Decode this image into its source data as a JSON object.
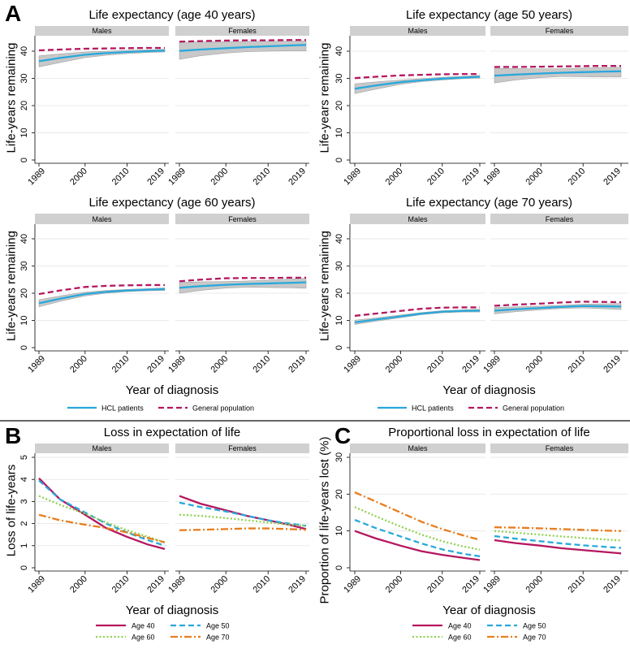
{
  "figure": {
    "panel_letters": [
      "A",
      "B",
      "C"
    ],
    "legend_A": [
      {
        "label": "HCL patients",
        "color": "#29a8dc",
        "style": "solid"
      },
      {
        "label": "General population",
        "color": "#b5175f",
        "style": "dashed"
      }
    ],
    "legend_BC": [
      {
        "label": "Age 40",
        "color": "#b5175f",
        "style": "solid"
      },
      {
        "label": "Age 50",
        "color": "#29a8dc",
        "style": "dashed"
      },
      {
        "label": "Age 60",
        "color": "#8fd14f",
        "style": "dotted"
      },
      {
        "label": "Age 70",
        "color": "#e87d1e",
        "style": "dashdot"
      }
    ],
    "ci_color": "#c8c8c8",
    "strip_color": "#d0d0d0"
  },
  "chart_data": [
    {
      "type": "line",
      "panel": "A",
      "title": "Life expectancy (age 40 years)",
      "xlabel": "",
      "ylabel": "Life-years remaining",
      "ylim": [
        0,
        45
      ],
      "yticks": [
        0,
        10,
        20,
        30,
        40
      ],
      "xticks": [
        1989,
        2000,
        2010,
        2019
      ],
      "grid": true,
      "legend": "none",
      "facets": [
        {
          "label": "Males",
          "x": [
            1989,
            1994,
            2000,
            2005,
            2010,
            2015,
            2019
          ],
          "series": [
            {
              "name": "HCL patients",
              "values": [
                36.3,
                37.5,
                38.7,
                39.3,
                39.7,
                40.0,
                40.2
              ],
              "ci_lower": [
                34.2,
                35.8,
                37.6,
                38.5,
                39.1,
                39.5,
                39.7
              ],
              "ci_upper": [
                38.3,
                39.0,
                39.7,
                40.0,
                40.3,
                40.5,
                40.7
              ]
            },
            {
              "name": "General population",
              "values": [
                40.3,
                40.6,
                40.9,
                41.0,
                41.1,
                41.2,
                41.2
              ]
            }
          ]
        },
        {
          "label": "Females",
          "x": [
            1989,
            1994,
            2000,
            2005,
            2010,
            2015,
            2019
          ],
          "series": [
            {
              "name": "HCL patients",
              "values": [
                40.1,
                40.6,
                41.1,
                41.5,
                41.8,
                42.1,
                42.3
              ],
              "ci_lower": [
                37.0,
                38.3,
                39.3,
                39.8,
                40.0,
                40.1,
                40.1
              ],
              "ci_upper": [
                43.3,
                43.4,
                43.5,
                43.6,
                43.7,
                43.7,
                43.8
              ]
            },
            {
              "name": "General population",
              "values": [
                43.5,
                43.7,
                43.9,
                44.0,
                44.0,
                44.1,
                44.1
              ]
            }
          ]
        }
      ]
    },
    {
      "type": "line",
      "panel": "A",
      "title": "Life expectancy (age 50 years)",
      "xlabel": "",
      "ylabel": "Life-years remaining",
      "ylim": [
        0,
        45
      ],
      "yticks": [
        0,
        10,
        20,
        30,
        40
      ],
      "xticks": [
        1989,
        2000,
        2010,
        2019
      ],
      "grid": true,
      "legend": "none",
      "facets": [
        {
          "label": "Males",
          "x": [
            1989,
            1994,
            2000,
            2005,
            2010,
            2015,
            2019
          ],
          "series": [
            {
              "name": "HCL patients",
              "values": [
                26.2,
                27.4,
                28.6,
                29.3,
                29.9,
                30.3,
                30.6
              ],
              "ci_lower": [
                24.4,
                26.0,
                27.8,
                28.8,
                29.4,
                29.9,
                30.1
              ],
              "ci_upper": [
                28.0,
                28.7,
                29.4,
                29.9,
                30.4,
                30.8,
                31.1
              ]
            },
            {
              "name": "General population",
              "values": [
                30.1,
                30.6,
                31.1,
                31.3,
                31.5,
                31.6,
                31.6
              ]
            }
          ]
        },
        {
          "label": "Females",
          "x": [
            1989,
            1994,
            2000,
            2005,
            2010,
            2015,
            2019
          ],
          "series": [
            {
              "name": "HCL patients",
              "values": [
                31.0,
                31.4,
                31.8,
                32.1,
                32.3,
                32.5,
                32.6
              ],
              "ci_lower": [
                28.3,
                29.4,
                30.3,
                30.7,
                30.6,
                30.5,
                30.5
              ],
              "ci_upper": [
                33.7,
                33.6,
                33.5,
                33.6,
                33.8,
                34.0,
                34.1
              ]
            },
            {
              "name": "General population",
              "values": [
                34.2,
                34.2,
                34.3,
                34.4,
                34.5,
                34.6,
                34.6
              ]
            }
          ]
        }
      ]
    },
    {
      "type": "line",
      "panel": "A",
      "title": "Life expectancy (age 60 years)",
      "xlabel": "Year of diagnosis",
      "ylabel": "Life-years remaining",
      "ylim": [
        0,
        45
      ],
      "yticks": [
        0,
        10,
        20,
        30,
        40
      ],
      "xticks": [
        1989,
        2000,
        2010,
        2019
      ],
      "grid": true,
      "legend": "bottom",
      "facets": [
        {
          "label": "Males",
          "x": [
            1989,
            1994,
            2000,
            2005,
            2010,
            2015,
            2019
          ],
          "series": [
            {
              "name": "HCL patients",
              "values": [
                16.3,
                18.0,
                19.7,
                20.5,
                21.0,
                21.3,
                21.5
              ],
              "ci_lower": [
                15.0,
                17.0,
                19.0,
                20.0,
                20.6,
                20.9,
                21.0
              ],
              "ci_upper": [
                17.6,
                19.0,
                20.4,
                21.0,
                21.4,
                21.7,
                22.0
              ]
            },
            {
              "name": "General population",
              "values": [
                19.7,
                21.0,
                22.3,
                22.7,
                22.9,
                23.0,
                23.0
              ]
            }
          ]
        },
        {
          "label": "Females",
          "x": [
            1989,
            1994,
            2000,
            2005,
            2010,
            2015,
            2019
          ],
          "series": [
            {
              "name": "HCL patients",
              "values": [
                22.0,
                22.6,
                23.1,
                23.4,
                23.6,
                23.8,
                24.0
              ],
              "ci_lower": [
                20.0,
                21.0,
                21.9,
                22.2,
                22.1,
                22.0,
                21.8
              ],
              "ci_upper": [
                24.0,
                24.2,
                24.3,
                24.5,
                24.8,
                25.2,
                25.5
              ]
            },
            {
              "name": "General population",
              "values": [
                24.4,
                25.0,
                25.5,
                25.6,
                25.6,
                25.7,
                25.7
              ]
            }
          ]
        }
      ]
    },
    {
      "type": "line",
      "panel": "A",
      "title": "Life expectancy (age 70 years)",
      "xlabel": "Year of diagnosis",
      "ylabel": "Life-years remaining",
      "ylim": [
        0,
        45
      ],
      "yticks": [
        0,
        10,
        20,
        30,
        40
      ],
      "xticks": [
        1989,
        2000,
        2010,
        2019
      ],
      "grid": true,
      "legend": "bottom",
      "facets": [
        {
          "label": "Males",
          "x": [
            1989,
            1994,
            2000,
            2005,
            2010,
            2015,
            2019
          ],
          "series": [
            {
              "name": "HCL patients",
              "values": [
                9.3,
                10.3,
                11.5,
                12.5,
                13.2,
                13.5,
                13.6
              ],
              "ci_lower": [
                8.5,
                9.7,
                11.0,
                12.1,
                12.8,
                13.1,
                13.1
              ],
              "ci_upper": [
                10.1,
                10.9,
                12.0,
                12.9,
                13.6,
                13.9,
                14.1
              ]
            },
            {
              "name": "General population",
              "values": [
                11.7,
                12.5,
                13.5,
                14.3,
                14.7,
                14.8,
                14.8
              ]
            }
          ]
        },
        {
          "label": "Females",
          "x": [
            1989,
            1994,
            2000,
            2005,
            2010,
            2015,
            2019
          ],
          "series": [
            {
              "name": "HCL patients",
              "values": [
                13.6,
                14.1,
                14.6,
                15.0,
                15.3,
                15.2,
                15.1
              ],
              "ci_lower": [
                12.4,
                13.2,
                13.9,
                14.4,
                14.6,
                14.3,
                14.0
              ],
              "ci_upper": [
                14.8,
                15.0,
                15.3,
                15.6,
                16.0,
                16.1,
                16.2
              ]
            },
            {
              "name": "General population",
              "values": [
                15.4,
                15.8,
                16.2,
                16.6,
                16.9,
                16.8,
                16.7
              ]
            }
          ]
        }
      ]
    },
    {
      "type": "line",
      "panel": "B",
      "title": "Loss in expectation of life",
      "xlabel": "Year of diagnosis",
      "ylabel": "Loss of life-years",
      "ylim": [
        0,
        5
      ],
      "yticks": [
        0,
        1,
        2,
        3,
        4,
        5
      ],
      "xticks": [
        1989,
        2000,
        2010,
        2019
      ],
      "grid": true,
      "legend": "bottom",
      "facets": [
        {
          "label": "Males",
          "x": [
            1989,
            1994,
            2000,
            2005,
            2010,
            2015,
            2019
          ],
          "series": [
            {
              "name": "Age 40",
              "values": [
                4.05,
                3.1,
                2.4,
                1.8,
                1.4,
                1.05,
                0.85
              ]
            },
            {
              "name": "Age 50",
              "values": [
                3.95,
                3.1,
                2.5,
                2.0,
                1.6,
                1.25,
                1.0
              ]
            },
            {
              "name": "Age 60",
              "values": [
                3.25,
                2.85,
                2.45,
                2.05,
                1.7,
                1.4,
                1.15
              ]
            },
            {
              "name": "Age 70",
              "values": [
                2.4,
                2.15,
                1.95,
                1.8,
                1.6,
                1.35,
                1.15
              ]
            }
          ]
        },
        {
          "label": "Females",
          "x": [
            1989,
            1994,
            2000,
            2005,
            2010,
            2015,
            2019
          ],
          "series": [
            {
              "name": "Age 40",
              "values": [
                3.25,
                2.9,
                2.6,
                2.35,
                2.15,
                1.95,
                1.75
              ]
            },
            {
              "name": "Age 50",
              "values": [
                2.95,
                2.75,
                2.55,
                2.35,
                2.15,
                2.0,
                1.9
              ]
            },
            {
              "name": "Age 60",
              "values": [
                2.4,
                2.35,
                2.25,
                2.15,
                2.05,
                1.95,
                1.9
              ]
            },
            {
              "name": "Age 70",
              "values": [
                1.7,
                1.72,
                1.75,
                1.78,
                1.78,
                1.75,
                1.72
              ]
            }
          ]
        }
      ]
    },
    {
      "type": "line",
      "panel": "C",
      "title": "Proportional loss in expectation of life",
      "xlabel": "Year of diagnosis",
      "ylabel": "Proportion of life-years lost (%)",
      "ylim": [
        0,
        30
      ],
      "yticks": [
        0,
        10,
        20,
        30
      ],
      "xticks": [
        1989,
        2000,
        2010,
        2019
      ],
      "grid": true,
      "legend": "bottom",
      "facets": [
        {
          "label": "Males",
          "x": [
            1989,
            1994,
            2000,
            2005,
            2010,
            2015,
            2019
          ],
          "series": [
            {
              "name": "Age 40",
              "values": [
                10.0,
                8.0,
                6.0,
                4.5,
                3.5,
                2.7,
                2.1
              ]
            },
            {
              "name": "Age 50",
              "values": [
                13.0,
                10.8,
                8.5,
                6.6,
                5.0,
                3.8,
                3.1
              ]
            },
            {
              "name": "Age 60",
              "values": [
                16.5,
                14.0,
                11.2,
                9.0,
                7.2,
                5.8,
                4.9
              ]
            },
            {
              "name": "Age 70",
              "values": [
                20.5,
                18.0,
                15.0,
                12.5,
                10.5,
                8.8,
                7.6
              ]
            }
          ]
        },
        {
          "label": "Females",
          "x": [
            1989,
            1994,
            2000,
            2005,
            2010,
            2015,
            2019
          ],
          "series": [
            {
              "name": "Age 40",
              "values": [
                7.5,
                6.7,
                6.0,
                5.3,
                4.8,
                4.3,
                3.9
              ]
            },
            {
              "name": "Age 50",
              "values": [
                8.6,
                7.9,
                7.2,
                6.6,
                6.1,
                5.7,
                5.4
              ]
            },
            {
              "name": "Age 60",
              "values": [
                10.0,
                9.5,
                9.0,
                8.5,
                8.1,
                7.7,
                7.4
              ]
            },
            {
              "name": "Age 70",
              "values": [
                11.0,
                10.9,
                10.7,
                10.5,
                10.3,
                10.1,
                10.0
              ]
            }
          ]
        }
      ]
    }
  ]
}
